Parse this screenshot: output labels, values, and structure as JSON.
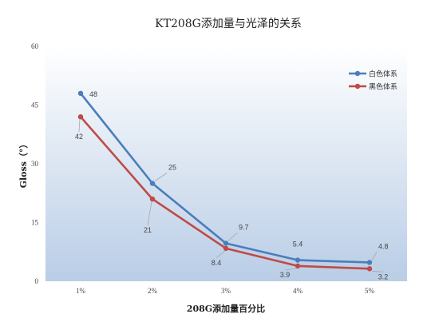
{
  "chart_data": {
    "type": "line",
    "title": "KT208G添加量与光泽的关系",
    "xlabel": "208G添加量百分比",
    "ylabel": "Gloss（°）",
    "categories": [
      "1%",
      "2%",
      "3%",
      "4%",
      "5%"
    ],
    "ylim": [
      0,
      60
    ],
    "yticks": [
      "0",
      "15",
      "30",
      "45",
      "60"
    ],
    "grid": false,
    "legend_position": "top-right",
    "background": "vertical gradient white to light blue",
    "series": [
      {
        "name": "白色体系",
        "color": "#4A7EBB",
        "values": [
          48,
          25,
          9.7,
          5.4,
          4.8
        ],
        "labels": [
          "48",
          "25",
          "9.7",
          "5.4",
          "4.8"
        ]
      },
      {
        "name": "黑色体系",
        "color": "#BE4B48",
        "values": [
          42,
          21,
          8.4,
          3.9,
          3.2
        ],
        "labels": [
          "42",
          "21",
          "8.4",
          "3.9",
          "3.2"
        ]
      }
    ]
  }
}
